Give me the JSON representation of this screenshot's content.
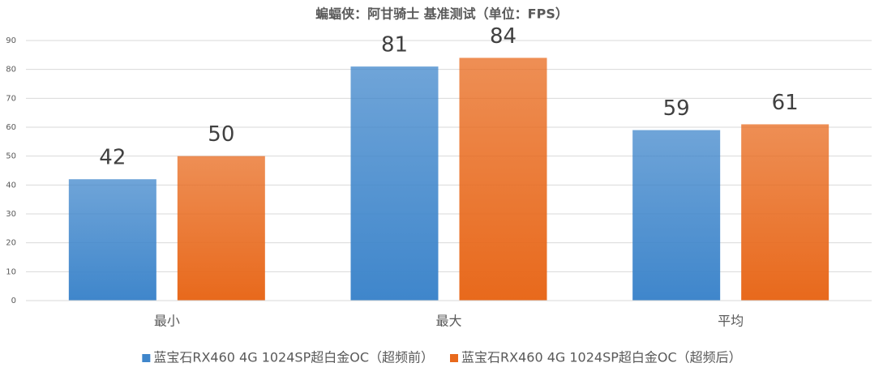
{
  "chart_data": {
    "type": "bar",
    "title": "蝙蝠侠：阿甘骑士 基准测试（单位：FPS）",
    "categories": [
      "最小",
      "最大",
      "平均"
    ],
    "series": [
      {
        "name": "蓝宝石RX460 4G 1024SP超白金OC（超频前）",
        "color": "#3f86cb",
        "values": [
          42,
          81,
          59
        ]
      },
      {
        "name": "蓝宝石RX460 4G 1024SP超白金OC（超频后）",
        "color": "#e8691c",
        "values": [
          50,
          84,
          61
        ]
      }
    ],
    "ylim": [
      0,
      90
    ],
    "yticks": [
      0,
      10,
      20,
      30,
      40,
      50,
      60,
      70,
      80,
      90
    ],
    "grid": true,
    "legend": "bottom"
  }
}
